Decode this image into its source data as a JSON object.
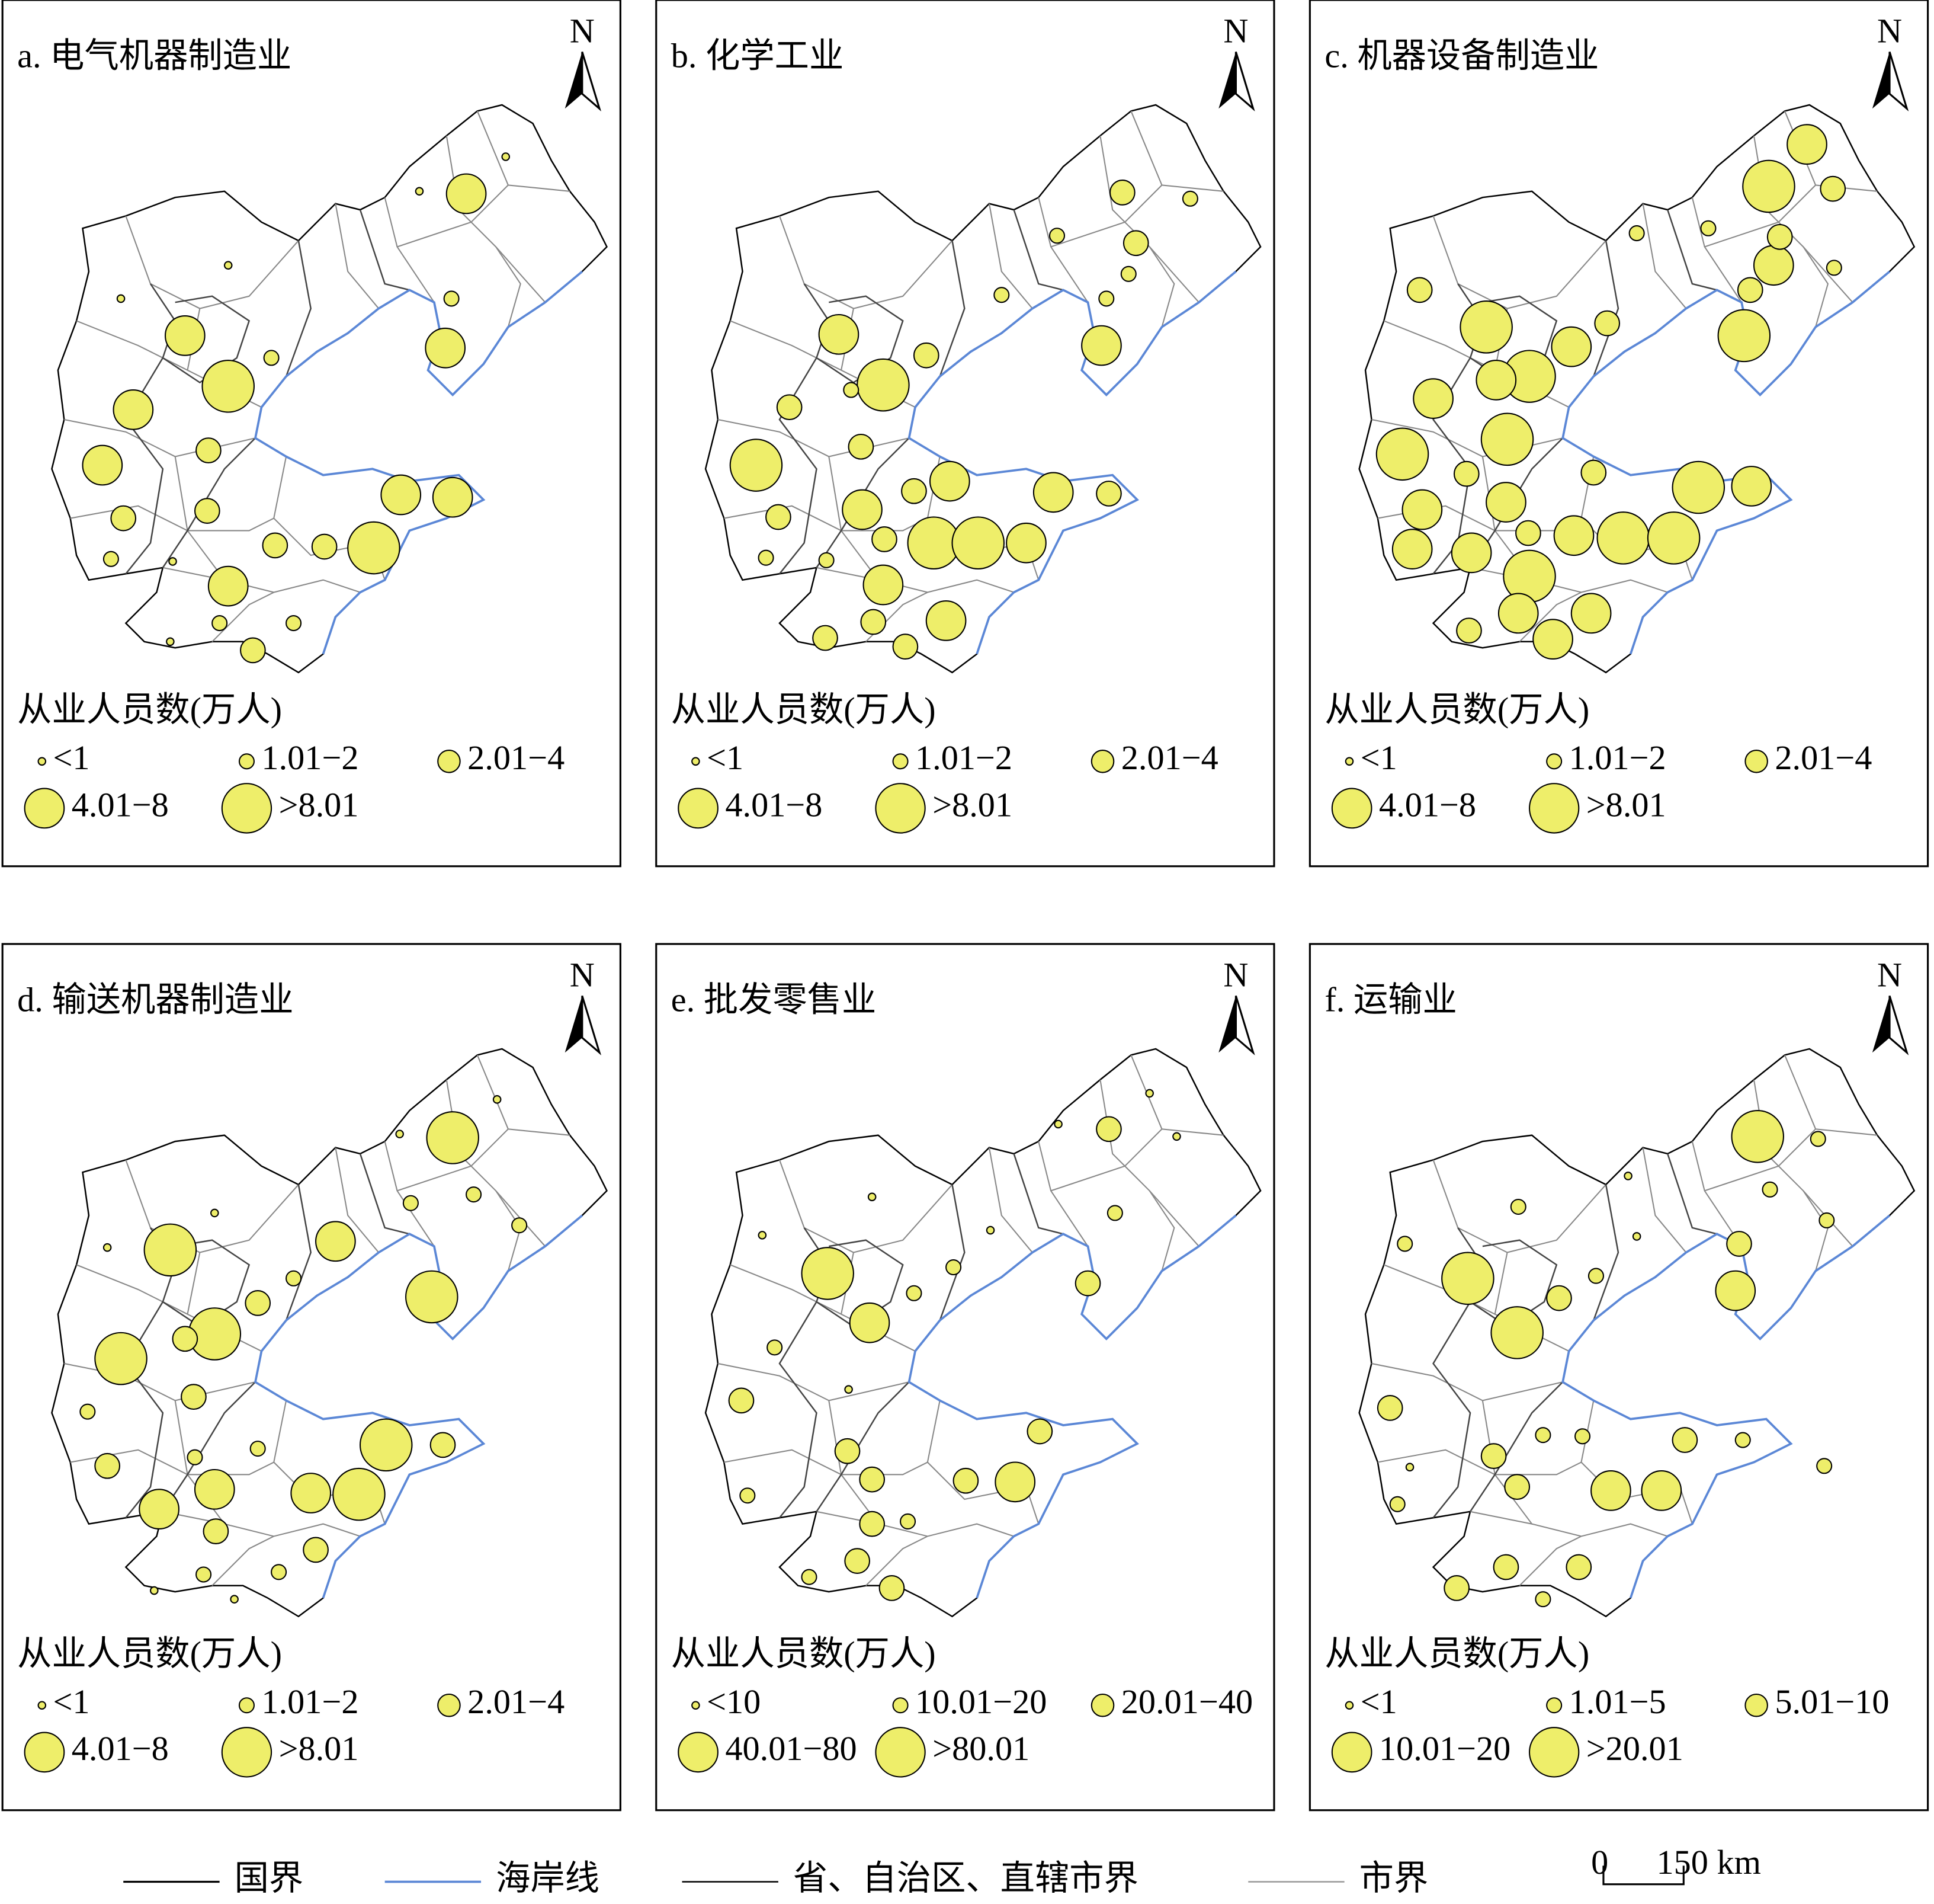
{
  "panels": [
    {
      "title": "a. 电气机器制造业",
      "north": "N",
      "legend_title": "从业人员数(万人)",
      "legend_items": [
        "<1",
        "1.01−2",
        "2.01−4",
        "4.01−8",
        ">8.01"
      ]
    },
    {
      "title": "b. 化学工业",
      "north": "N",
      "legend_title": "从业人员数(万人)",
      "legend_items": [
        "<1",
        "1.01−2",
        "2.01−4",
        "4.01−8",
        ">8.01"
      ]
    },
    {
      "title": "c. 机器设备制造业",
      "north": "N",
      "legend_title": "从业人员数(万人)",
      "legend_items": [
        "<1",
        "1.01−2",
        "2.01−4",
        "4.01−8",
        ">8.01"
      ]
    },
    {
      "title": "d. 输送机器制造业",
      "north": "N",
      "legend_title": "从业人员数(万人)",
      "legend_items": [
        "<1",
        "1.01−2",
        "2.01−4",
        "4.01−8",
        ">8.01"
      ]
    },
    {
      "title": "e. 批发零售业",
      "north": "N",
      "legend_title": "从业人员数(万人)",
      "legend_items": [
        "<10",
        "10.01−20",
        "20.01−40",
        "40.01−80",
        ">80.01"
      ]
    },
    {
      "title": "f. 运输业",
      "north": "N",
      "legend_title": "从业人员数(万人)",
      "legend_items": [
        "<1",
        "1.01−5",
        "5.01−10",
        "10.01−20",
        ">20.01"
      ]
    }
  ],
  "legend": {
    "items": [
      "国界",
      "海岸线",
      "省、自治区、直辖市界",
      "市界"
    ],
    "scale": {
      "zero": "0",
      "distance": "150 km"
    }
  }
}
